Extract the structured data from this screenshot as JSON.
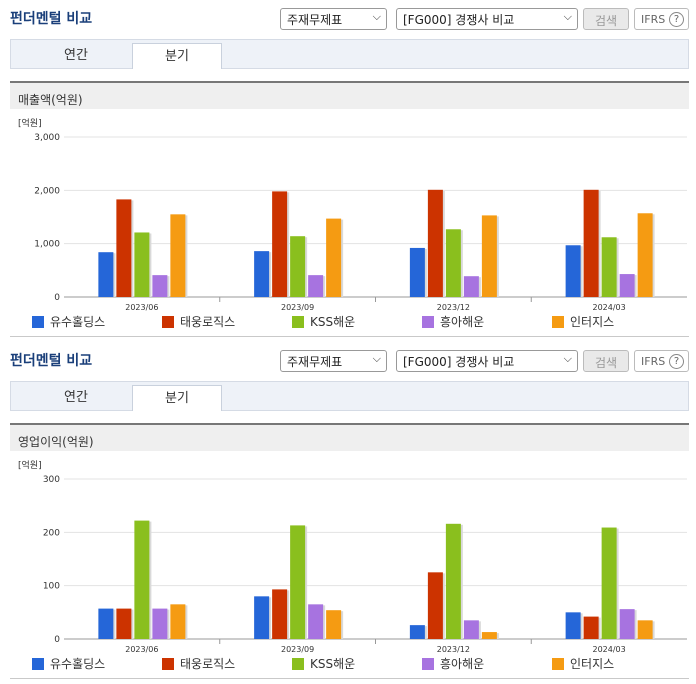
{
  "colors": [
    "#2566d8",
    "#cc3300",
    "#8abf1e",
    "#a773e0",
    "#f59b12"
  ],
  "panels": [
    {
      "title": "펀더멘털 비교",
      "period_select": "주재무제표",
      "compare_select": "[FG000] 경쟁사 비교",
      "search_label": "검색",
      "ifrs_label": "IFRS",
      "ifrs_help": "?",
      "tabs": [
        "연간",
        "분기"
      ],
      "active_tab": 1,
      "metric_title": "매출액(억원)",
      "chart_data": {
        "type": "bar",
        "unit_label": "[억원]",
        "categories": [
          "2023/06",
          "2023/09",
          "2023/12",
          "2024/03"
        ],
        "ylim": [
          0,
          3000
        ],
        "yticks": [
          "3,000",
          "2,000",
          "1,000",
          "0"
        ],
        "ytick_values": [
          3000,
          2000,
          1000,
          0
        ],
        "series": [
          {
            "name": "유수홀딩스",
            "values": [
              840,
              860,
              920,
              970
            ]
          },
          {
            "name": "태웅로직스",
            "values": [
              1830,
              1980,
              2010,
              2010
            ]
          },
          {
            "name": "KSS해운",
            "values": [
              1210,
              1140,
              1270,
              1120
            ]
          },
          {
            "name": "흥아해운",
            "values": [
              410,
              410,
              390,
              430
            ]
          },
          {
            "name": "인터지스",
            "values": [
              1550,
              1470,
              1530,
              1570
            ]
          }
        ]
      }
    },
    {
      "title": "펀더멘털 비교",
      "period_select": "주재무제표",
      "compare_select": "[FG000] 경쟁사 비교",
      "search_label": "검색",
      "ifrs_label": "IFRS",
      "ifrs_help": "?",
      "tabs": [
        "연간",
        "분기"
      ],
      "active_tab": 1,
      "metric_title": "영업이익(억원)",
      "chart_data": {
        "type": "bar",
        "unit_label": "[억원]",
        "categories": [
          "2023/06",
          "2023/09",
          "2023/12",
          "2024/03"
        ],
        "ylim": [
          0,
          300
        ],
        "yticks": [
          "300",
          "200",
          "100",
          "0"
        ],
        "ytick_values": [
          300,
          200,
          100,
          0
        ],
        "series": [
          {
            "name": "유수홀딩스",
            "values": [
              57,
              80,
              26,
              50
            ]
          },
          {
            "name": "태웅로직스",
            "values": [
              57,
              93,
              125,
              42
            ]
          },
          {
            "name": "KSS해운",
            "values": [
              222,
              213,
              216,
              209
            ]
          },
          {
            "name": "흥아해운",
            "values": [
              57,
              65,
              35,
              56
            ]
          },
          {
            "name": "인터지스",
            "values": [
              65,
              54,
              13,
              35
            ]
          }
        ]
      }
    }
  ]
}
